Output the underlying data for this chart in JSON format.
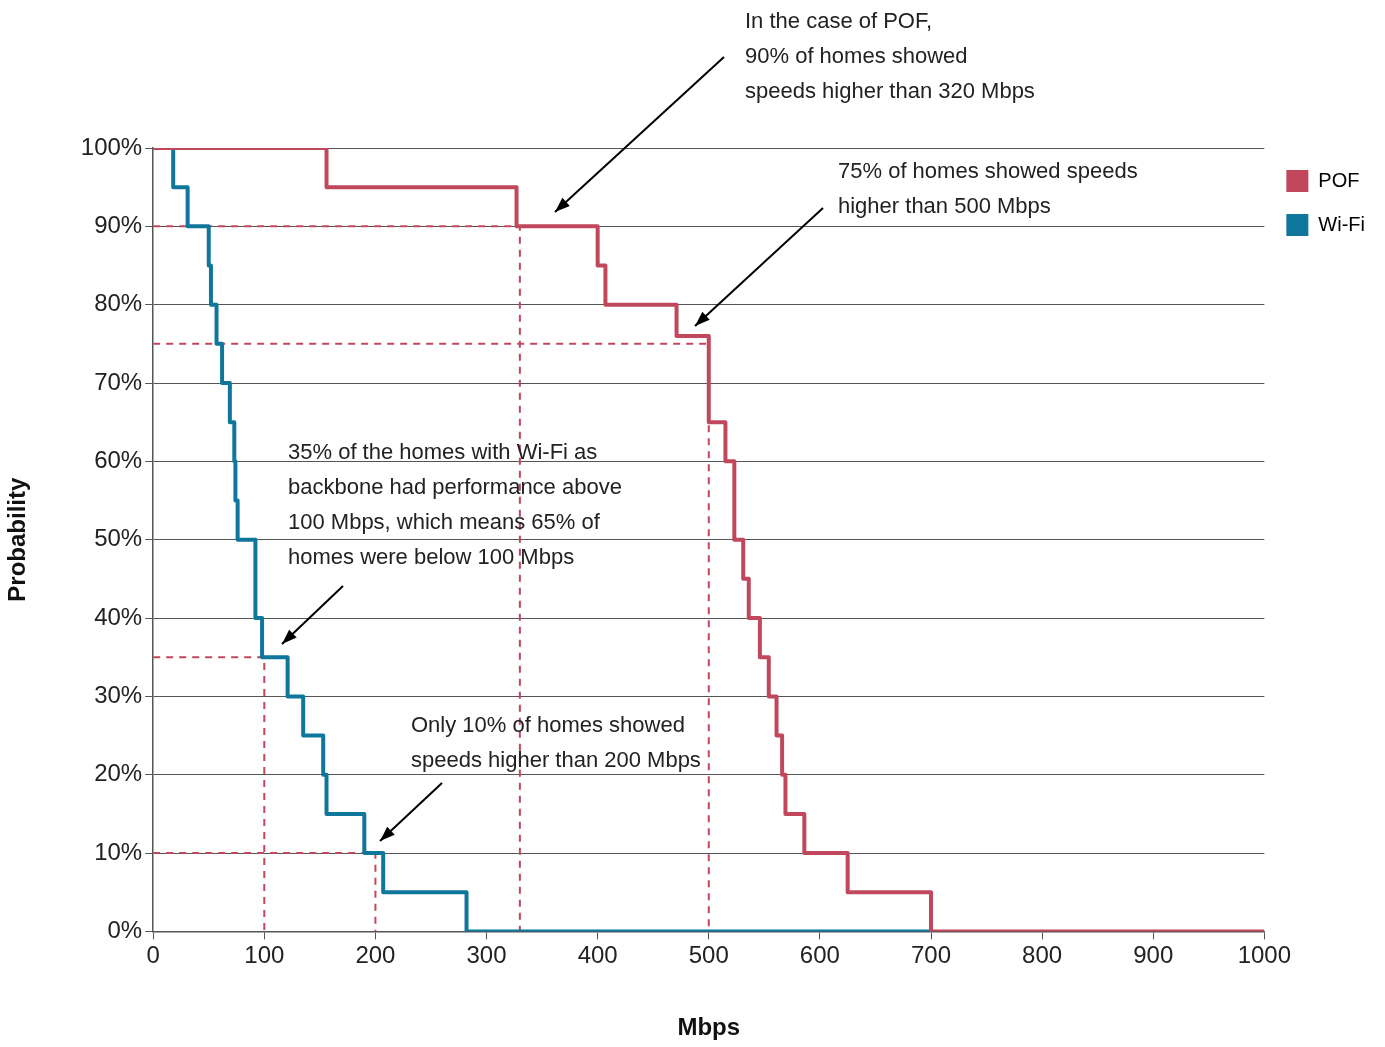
{
  "chart_data": {
    "type": "step",
    "xlabel": "Mbps",
    "ylabel": "Probability",
    "xlim": [
      0,
      1000
    ],
    "ylim": [
      0,
      100
    ],
    "xticks": [
      0,
      100,
      200,
      300,
      400,
      500,
      600,
      700,
      800,
      900,
      1000
    ],
    "yticks": [
      {
        "value": 0,
        "label": "0%"
      },
      {
        "value": 10,
        "label": "10%"
      },
      {
        "value": 20,
        "label": "20%"
      },
      {
        "value": 30,
        "label": "30%"
      },
      {
        "value": 40,
        "label": "40%"
      },
      {
        "value": 50,
        "label": "50%"
      },
      {
        "value": 60,
        "label": "60%"
      },
      {
        "value": 70,
        "label": "70%"
      },
      {
        "value": 80,
        "label": "80%"
      },
      {
        "value": 90,
        "label": "90%"
      },
      {
        "value": 100,
        "label": "100%"
      }
    ],
    "grid": "y",
    "legend": "top right",
    "marker": "none",
    "series": [
      {
        "type": "line",
        "line_style": "dashed",
        "color": "#c0475c",
        "x": [
          0,
          330,
          330
        ],
        "values": [
          90,
          90,
          0
        ]
      },
      {
        "type": "line",
        "line_style": "dashed",
        "color": "#c0475c",
        "x": [
          0,
          500,
          500
        ],
        "values": [
          75,
          75,
          0
        ]
      },
      {
        "type": "line",
        "line_style": "dashed",
        "color": "#c0475c",
        "x": [
          0,
          100,
          100
        ],
        "values": [
          35,
          35,
          0
        ]
      },
      {
        "type": "line",
        "line_style": "dashed",
        "color": "#c0475c",
        "x": [
          0,
          200,
          200
        ],
        "values": [
          10,
          10,
          0
        ]
      },
      {
        "name": "POF",
        "color": "#c0475c",
        "x": [
          0,
          156,
          327,
          400,
          407,
          471,
          500,
          515,
          523,
          531,
          536,
          546,
          554,
          561,
          566,
          569,
          586,
          625,
          700,
          1000
        ],
        "values": [
          100,
          95,
          90,
          85,
          80,
          76,
          65,
          60,
          50,
          45,
          40,
          35,
          30,
          25,
          20,
          15,
          10,
          5,
          0,
          0
        ]
      },
      {
        "name": "Wi-Fi",
        "color": "#0f779c",
        "x": [
          18,
          18,
          31,
          50,
          52,
          57,
          62,
          69,
          73,
          74,
          76,
          92,
          98,
          121,
          135,
          153,
          156,
          190,
          207,
          282,
          700
        ],
        "values": [
          100,
          95,
          90,
          85,
          80,
          75,
          70,
          65,
          60,
          55,
          50,
          40,
          35,
          30,
          25,
          20,
          15,
          10,
          5,
          0,
          0
        ]
      }
    ],
    "annotations": [
      "In the case of POF,\n90% of homes showed\nspeeds higher than 320 Mbps",
      "75% of homes showed speeds\nhigher than 500 Mbps",
      "35% of the homes with Wi-Fi as\nbackbone had performance above\n100 Mbps, which means 65% of\nhomes were below 100 Mbps",
      "Only 10% of homes showed\nspeeds higher than 200 Mbps"
    ]
  }
}
